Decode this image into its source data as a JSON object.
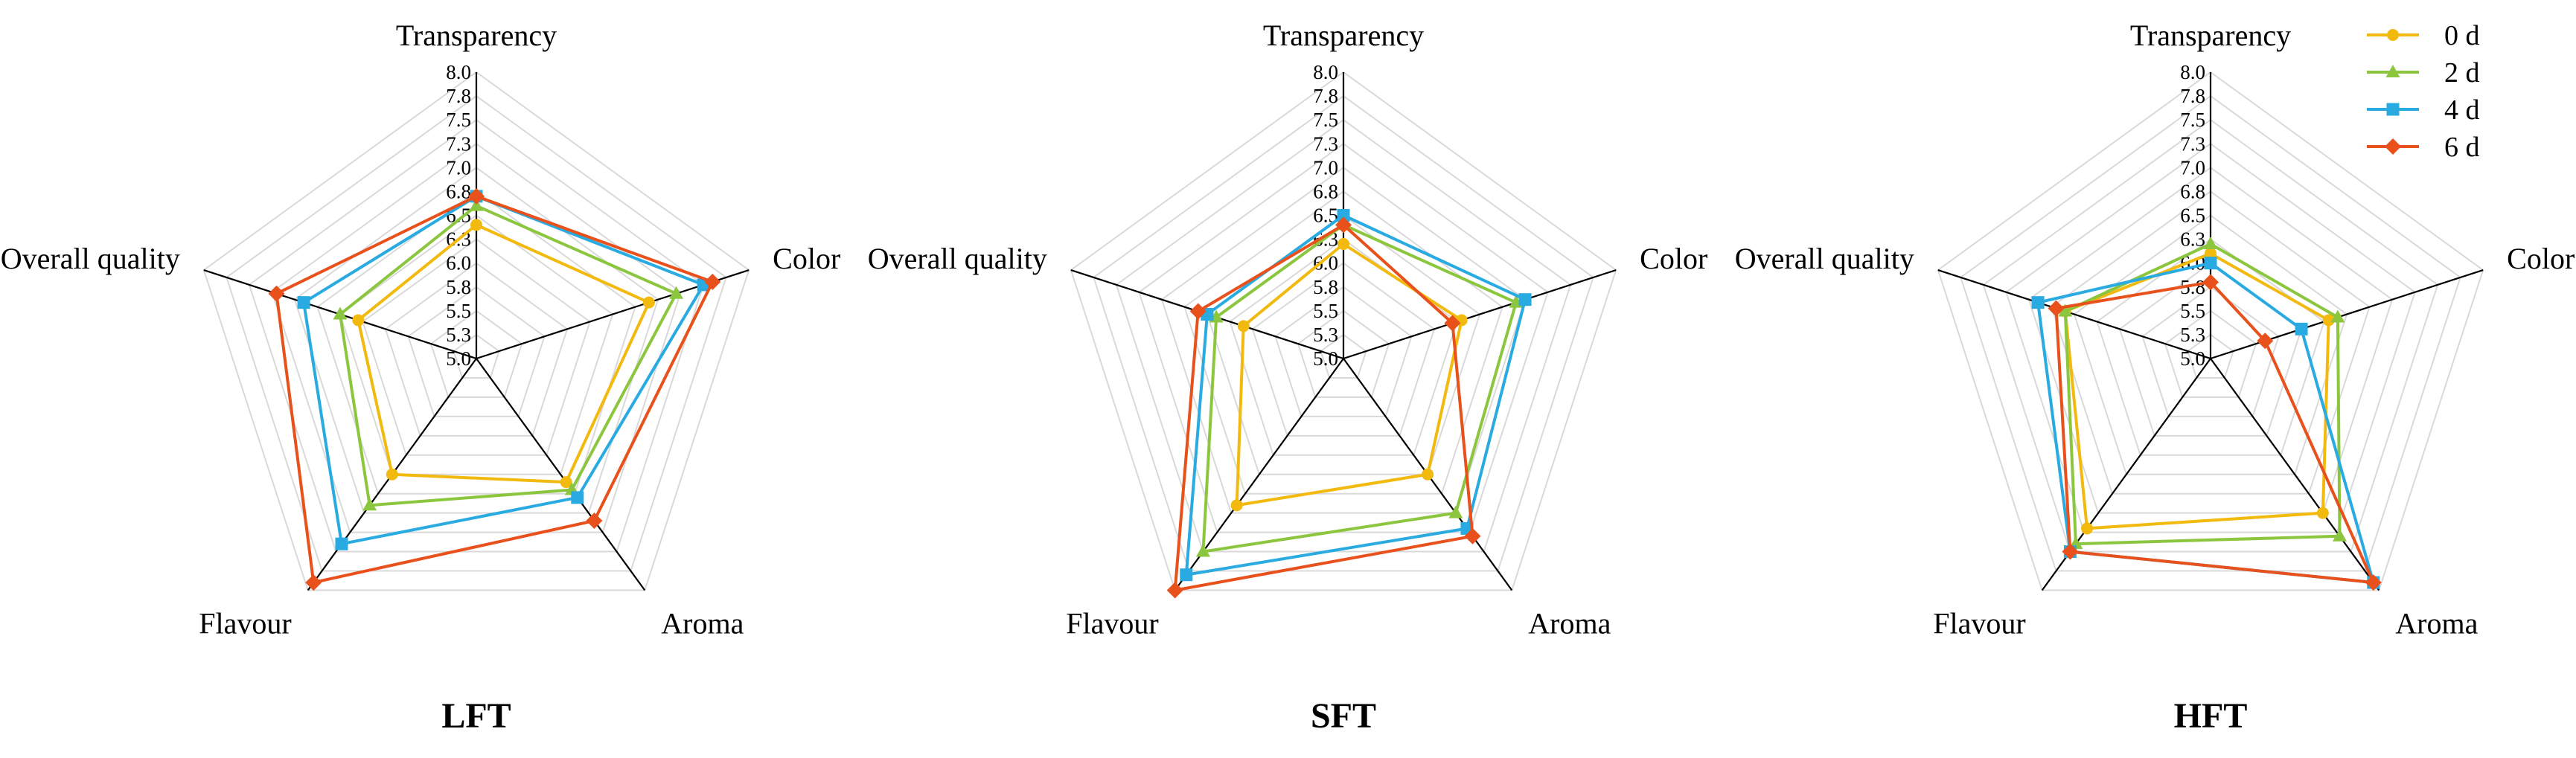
{
  "chart_data": {
    "type": "radar",
    "shared": {
      "axes": [
        "Transparency",
        "Color",
        "Aroma",
        "Flavour",
        "Overall quality"
      ],
      "ticks": [
        "5.0",
        "5.3",
        "5.5",
        "5.8",
        "6.0",
        "6.3",
        "6.5",
        "6.8",
        "7.0",
        "7.3",
        "7.5",
        "7.8",
        "8.0"
      ],
      "range": [
        5.0,
        8.0
      ],
      "grid": true,
      "legend_position": "top-right",
      "series_styles": [
        {
          "name": "0 d",
          "color": "#F2B90F",
          "marker": "circle"
        },
        {
          "name": "2 d",
          "color": "#8CC63F",
          "marker": "triangle"
        },
        {
          "name": "4 d",
          "color": "#29ABE2",
          "marker": "square"
        },
        {
          "name": "6 d",
          "color": "#E8501C",
          "marker": "diamond"
        }
      ]
    },
    "charts": [
      {
        "title": "LFT",
        "series": [
          {
            "name": "0 d",
            "values": [
              6.4,
              6.9,
              6.6,
              6.5,
              6.3
            ]
          },
          {
            "name": "2 d",
            "values": [
              6.6,
              7.2,
              6.7,
              6.9,
              6.5
            ]
          },
          {
            "name": "4 d",
            "values": [
              6.7,
              7.5,
              6.8,
              7.4,
              6.9
            ]
          },
          {
            "name": "6 d",
            "values": [
              6.7,
              7.6,
              7.1,
              7.9,
              7.2
            ]
          }
        ]
      },
      {
        "title": "SFT",
        "series": [
          {
            "name": "0 d",
            "values": [
              6.2,
              6.3,
              6.5,
              6.9,
              6.1
            ]
          },
          {
            "name": "2 d",
            "values": [
              6.4,
              6.9,
              7.0,
              7.5,
              6.4
            ]
          },
          {
            "name": "4 d",
            "values": [
              6.5,
              7.0,
              7.2,
              7.8,
              6.5
            ]
          },
          {
            "name": "6 d",
            "values": [
              6.4,
              6.2,
              7.3,
              8.0,
              6.6
            ]
          }
        ]
      },
      {
        "title": "HFT",
        "series": [
          {
            "name": "0 d",
            "values": [
              6.1,
              6.3,
              7.0,
              7.2,
              6.6
            ]
          },
          {
            "name": "2 d",
            "values": [
              6.2,
              6.4,
              7.3,
              7.4,
              6.6
            ]
          },
          {
            "name": "4 d",
            "values": [
              6.0,
              6.0,
              7.9,
              7.5,
              6.9
            ]
          },
          {
            "name": "6 d",
            "values": [
              5.8,
              5.6,
              7.9,
              7.5,
              6.7
            ]
          }
        ]
      }
    ]
  }
}
